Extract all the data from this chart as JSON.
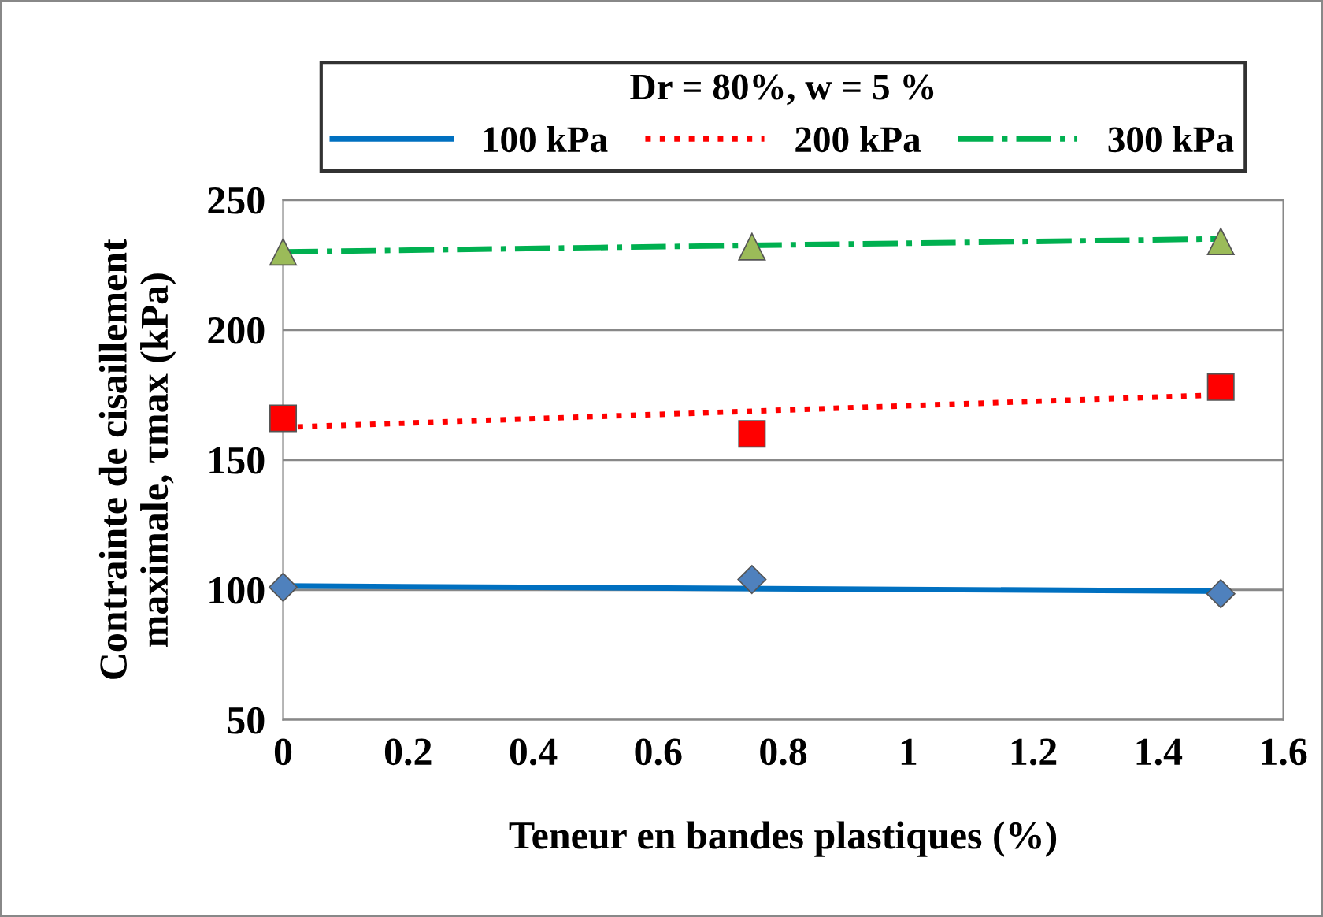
{
  "chart_data": {
    "type": "scatter",
    "legend_title": "Dr = 80%, w = 5 %",
    "xlabel": "Teneur en bandes plastiques (%)",
    "ylabel": "Contrainte de cisaillement\nmaximale, τmax (kPa)",
    "xlim": [
      0,
      1.6
    ],
    "xticks": [
      0,
      0.2,
      0.4,
      0.6,
      0.8,
      1,
      1.2,
      1.4,
      1.6
    ],
    "ylim": [
      50,
      250
    ],
    "yticks": [
      50,
      100,
      150,
      200,
      250
    ],
    "grid": "y",
    "legend": "top",
    "series": [
      {
        "marker": "diamond",
        "color": "#4f81bd",
        "x": [
          0,
          0.75,
          1.5
        ],
        "values": [
          101,
          104,
          98.5
        ]
      },
      {
        "marker": "square",
        "color": "#ff0000",
        "x": [
          0,
          0.75,
          1.5
        ],
        "values": [
          166,
          160,
          178
        ]
      },
      {
        "marker": "triangle",
        "color": "#9bbb59",
        "x": [
          0,
          0.75,
          1.5
        ],
        "values": [
          230,
          232,
          234
        ]
      },
      {
        "type": "line",
        "name": "100 kPa",
        "color": "#0070c0",
        "line_style": "solid",
        "x": [
          0,
          1.5
        ],
        "values": [
          101.5,
          99.5
        ]
      },
      {
        "type": "line",
        "name": "200 kPa",
        "color": "#ff0000",
        "line_style": "dotted",
        "x": [
          0,
          1.5
        ],
        "values": [
          162.5,
          175
        ]
      },
      {
        "type": "line",
        "name": "300 kPa",
        "color": "#00b050",
        "line_style": "dashdot",
        "x": [
          0,
          1.5
        ],
        "values": [
          230,
          235
        ]
      }
    ]
  }
}
